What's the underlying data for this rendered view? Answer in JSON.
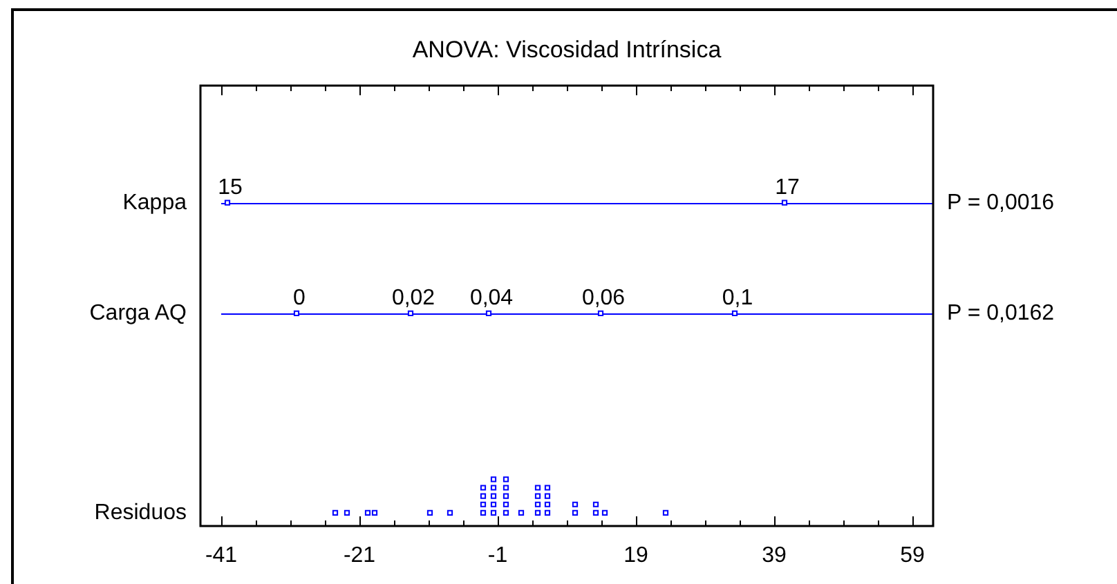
{
  "chart_data": {
    "type": "scatter",
    "orientation": "horizontal",
    "title": "ANOVA: Viscosidad Intrínsica",
    "categories": [
      "Kappa",
      "Carga AQ",
      "Residuos"
    ],
    "series": [
      {
        "color": "#0000ff",
        "x": [
          "Kappa",
          "Kappa"
        ],
        "values": [
          -40.1,
          40.5
        ]
      },
      {
        "color": "#0000ff",
        "x": [
          "Carga AQ",
          "Carga AQ",
          "Carga AQ",
          "Carga AQ",
          "Carga AQ"
        ],
        "values": [
          -30.1,
          -13.6,
          -2.3,
          13.9,
          33.3
        ]
      },
      {
        "color": "#0000ff",
        "x": [
          "Residuos",
          "Residuos",
          "Residuos",
          "Residuos",
          "Residuos",
          "Residuos",
          "Residuos",
          "Residuos",
          "Residuos",
          "Residuos",
          "Residuos",
          "Residuos",
          "Residuos",
          "Residuos",
          "Residuos",
          "Residuos",
          "Residuos",
          "Residuos",
          "Residuos",
          "Residuos",
          "Residuos",
          "Residuos",
          "Residuos",
          "Residuos",
          "Residuos",
          "Residuos",
          "Residuos",
          "Residuos",
          "Residuos",
          "Residuos",
          "Residuos",
          "Residuos",
          "Residuos",
          "Residuos",
          "Residuos"
        ],
        "values": [
          -24.5,
          -22.8,
          -19.8,
          -18.8,
          -10.8,
          -7.9,
          -3.1,
          -3.1,
          -3.1,
          -3.1,
          -1.6,
          -1.6,
          -1.6,
          -1.6,
          -1.6,
          0.2,
          0.2,
          0.2,
          0.2,
          0.2,
          2.4,
          4.8,
          4.8,
          4.8,
          4.8,
          6.2,
          6.2,
          6.2,
          6.2,
          10.2,
          10.2,
          13.2,
          13.2,
          14.5,
          23.3
        ]
      }
    ],
    "xlim": [
      -44,
      62
    ],
    "xticks": [
      -41,
      {
        "value": -36,
        "label": null
      },
      {
        "value": -31,
        "label": null
      },
      {
        "value": -26,
        "label": null
      },
      -21,
      {
        "value": -16,
        "label": null
      },
      {
        "value": -11,
        "label": null
      },
      {
        "value": -6,
        "label": null
      },
      -1,
      {
        "value": 4,
        "label": null
      },
      {
        "value": 9,
        "label": null
      },
      {
        "value": 14,
        "label": null
      },
      19,
      {
        "value": 24,
        "label": null
      },
      {
        "value": 29,
        "label": null
      },
      {
        "value": 34,
        "label": null
      },
      39,
      {
        "value": 44,
        "label": null
      },
      {
        "value": 49,
        "label": null
      },
      {
        "value": 54,
        "label": null
      },
      59
    ],
    "ref_lines": [
      {
        "axis": "y",
        "value": "Kappa",
        "color": "#0000ff"
      },
      {
        "axis": "y",
        "value": "Carga AQ",
        "color": "#0000ff"
      }
    ],
    "annotations": [
      "P = 0,0016",
      "P = 0,0162",
      {
        "text": "15",
        "x": -40.1,
        "y": "Kappa"
      },
      {
        "text": "17",
        "x": 40.5,
        "y": "Kappa"
      },
      {
        "text": "0",
        "x": -30.1,
        "y": "Carga AQ"
      },
      {
        "text": "0,02",
        "x": -13.6,
        "y": "Carga AQ"
      },
      {
        "text": "0,04",
        "x": -2.3,
        "y": "Carga AQ"
      },
      {
        "text": "0,06",
        "x": 13.9,
        "y": "Carga AQ"
      },
      {
        "text": "0,1",
        "x": 33.3,
        "y": "Carga AQ"
      }
    ],
    "marker": "square",
    "grid": false,
    "legend": false
  }
}
